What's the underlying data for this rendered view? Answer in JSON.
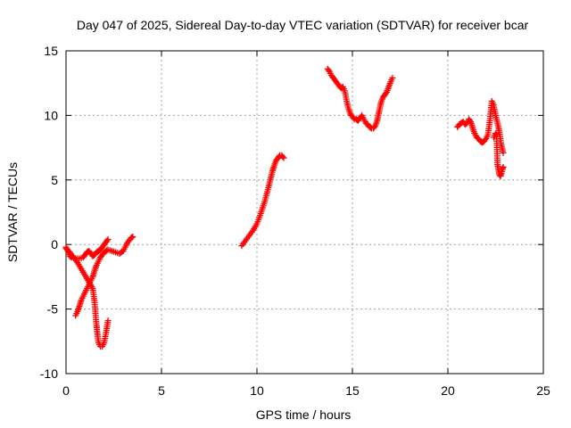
{
  "chart_data": {
    "type": "scatter",
    "title": "Day 047 of 2025, Sidereal Day-to-day VTEC variation (SDTVAR) for receiver bcar",
    "xlabel": "GPS time / hours",
    "ylabel": "SDTVAR / TECUs",
    "xlim": [
      0,
      25
    ],
    "ylim": [
      -10,
      15
    ],
    "xticks": [
      "0",
      "5",
      "10",
      "15",
      "20",
      "25"
    ],
    "yticks": [
      "-10",
      "-5",
      "0",
      "5",
      "10",
      "15"
    ],
    "grid": true,
    "marker": "plus",
    "color": "#ff0000",
    "series": [
      {
        "x": [
          0.0,
          0.1,
          0.2,
          0.3,
          0.5,
          0.7,
          0.9,
          1.0,
          1.1,
          1.2,
          1.3,
          1.4,
          1.5,
          1.6,
          1.7,
          1.8,
          1.9,
          2.0,
          2.1,
          2.2
        ],
        "y": [
          -0.2,
          -0.5,
          -0.9,
          -1.0,
          -1.1,
          -1.1,
          -1.0,
          -0.8,
          -0.6,
          -0.5,
          -0.7,
          -0.9,
          -0.8,
          -0.6,
          -0.5,
          -0.4,
          -0.2,
          0.0,
          0.2,
          0.4
        ]
      },
      {
        "x": [
          0.0,
          0.2,
          0.4,
          0.6,
          0.8,
          1.0,
          1.2,
          1.4,
          1.5,
          1.55,
          1.6,
          1.65,
          1.7,
          1.8,
          1.9,
          2.0,
          2.1,
          2.2
        ],
        "y": [
          -0.3,
          -0.6,
          -1.0,
          -1.4,
          -1.9,
          -2.4,
          -2.9,
          -3.4,
          -4.5,
          -5.5,
          -6.3,
          -7.0,
          -7.6,
          -7.9,
          -7.9,
          -7.6,
          -6.8,
          -5.9
        ]
      },
      {
        "x": [
          0.5,
          0.6,
          0.7,
          0.8,
          0.9,
          1.0,
          1.1,
          1.2,
          1.3,
          1.4,
          1.5,
          1.6,
          1.7,
          1.8,
          1.9,
          2.0,
          2.2,
          2.4,
          2.6,
          2.8,
          3.0,
          3.2,
          3.4,
          3.5
        ],
        "y": [
          -5.5,
          -5.2,
          -4.8,
          -4.3,
          -4.0,
          -3.7,
          -3.4,
          -3.1,
          -2.8,
          -2.5,
          -2.0,
          -1.6,
          -1.3,
          -1.0,
          -0.8,
          -0.6,
          -0.4,
          -0.5,
          -0.6,
          -0.7,
          -0.5,
          0.1,
          0.5,
          0.6
        ]
      },
      {
        "x": [
          9.2,
          9.4,
          9.6,
          9.8,
          10.0,
          10.2,
          10.4,
          10.6,
          10.7,
          10.8,
          10.9,
          11.0,
          11.1,
          11.2,
          11.3,
          11.4
        ],
        "y": [
          -0.1,
          0.3,
          0.7,
          1.1,
          1.6,
          2.4,
          3.3,
          4.4,
          5.0,
          5.6,
          6.1,
          6.5,
          6.7,
          6.9,
          6.9,
          6.7
        ]
      },
      {
        "x": [
          13.7,
          13.8,
          13.9,
          14.0,
          14.1,
          14.2,
          14.3,
          14.4,
          14.5,
          14.6,
          14.7,
          14.8,
          14.9,
          15.0,
          15.1,
          15.2,
          15.3,
          15.4,
          15.5,
          15.6,
          15.7,
          15.8,
          15.9,
          16.0,
          16.1,
          16.2,
          16.3,
          16.4,
          16.5,
          16.6,
          16.7,
          16.8,
          16.9,
          17.0,
          17.1
        ],
        "y": [
          13.6,
          13.4,
          13.1,
          12.9,
          12.7,
          12.5,
          12.3,
          12.1,
          12.2,
          11.9,
          11.1,
          10.5,
          10.1,
          9.9,
          9.7,
          9.7,
          9.6,
          9.8,
          10.0,
          9.7,
          9.4,
          9.3,
          9.1,
          9.0,
          9.0,
          9.2,
          9.6,
          10.3,
          11.0,
          11.4,
          11.6,
          11.8,
          12.2,
          12.6,
          12.9
        ]
      },
      {
        "x": [
          20.5,
          20.6,
          20.7,
          20.8,
          20.9,
          21.0,
          21.1,
          21.2,
          21.3,
          21.4,
          21.5,
          21.6,
          21.7,
          21.8,
          21.9,
          22.0,
          22.1,
          22.2,
          22.3,
          22.4,
          22.5,
          22.6,
          22.7,
          22.8,
          22.9
        ],
        "y": [
          9.1,
          9.3,
          9.4,
          9.5,
          9.3,
          9.4,
          9.7,
          9.5,
          9.0,
          8.6,
          8.3,
          8.2,
          8.0,
          7.9,
          8.0,
          8.2,
          8.5,
          9.6,
          11.1,
          10.8,
          10.0,
          9.4,
          8.7,
          7.7,
          7.1
        ]
      },
      {
        "x": [
          22.4,
          22.5,
          22.55,
          22.6,
          22.65,
          22.7,
          22.75,
          22.8,
          22.85,
          22.9
        ],
        "y": [
          8.3,
          8.6,
          8.5,
          6.2,
          5.8,
          5.4,
          5.3,
          5.5,
          5.8,
          6.0
        ]
      }
    ]
  }
}
